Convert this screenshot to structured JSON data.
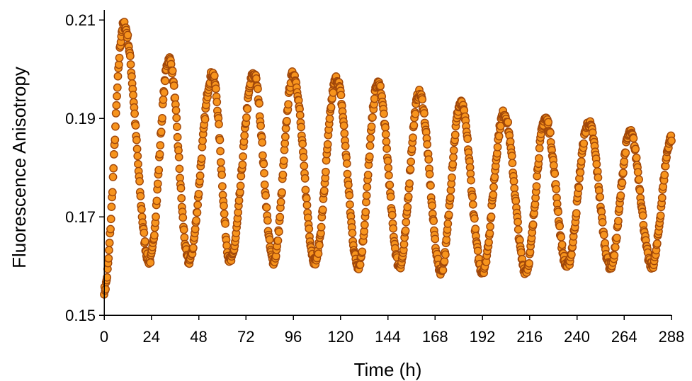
{
  "chart_data": {
    "type": "scatter",
    "title": "",
    "xlabel": "Time (h)",
    "ylabel": "Fluorescence Anisotropy",
    "xlim": [
      0,
      288
    ],
    "ylim": [
      0.15,
      0.21
    ],
    "xticks": [
      0,
      24,
      48,
      72,
      96,
      120,
      144,
      168,
      192,
      216,
      240,
      264,
      288
    ],
    "yticks": [
      0.15,
      0.17,
      0.19,
      0.21
    ],
    "ytick_labels": [
      "0.15",
      "0.17",
      "0.19",
      "0.21"
    ],
    "grid": false,
    "legend": "none",
    "marker_fill": "#f7941d",
    "marker_edge": "#a0470a",
    "period_hours": 21.4,
    "sampling_interval_hours": 0.25,
    "peaks": [
      {
        "x": 10,
        "y": 0.209
      },
      {
        "x": 33,
        "y": 0.202
      },
      {
        "x": 55,
        "y": 0.199
      },
      {
        "x": 76,
        "y": 0.199
      },
      {
        "x": 96,
        "y": 0.199
      },
      {
        "x": 118,
        "y": 0.198
      },
      {
        "x": 139,
        "y": 0.197
      },
      {
        "x": 160,
        "y": 0.195
      },
      {
        "x": 181,
        "y": 0.193
      },
      {
        "x": 203,
        "y": 0.191
      },
      {
        "x": 224,
        "y": 0.19
      },
      {
        "x": 246,
        "y": 0.189
      },
      {
        "x": 267,
        "y": 0.187
      }
    ],
    "troughs": [
      {
        "x": 0,
        "y": 0.155
      },
      {
        "x": 23,
        "y": 0.161
      },
      {
        "x": 43,
        "y": 0.161
      },
      {
        "x": 64,
        "y": 0.161
      },
      {
        "x": 86,
        "y": 0.161
      },
      {
        "x": 107,
        "y": 0.161
      },
      {
        "x": 129,
        "y": 0.16
      },
      {
        "x": 150,
        "y": 0.16
      },
      {
        "x": 171,
        "y": 0.159
      },
      {
        "x": 192,
        "y": 0.159
      },
      {
        "x": 214,
        "y": 0.159
      },
      {
        "x": 235,
        "y": 0.16
      },
      {
        "x": 257,
        "y": 0.16
      },
      {
        "x": 278,
        "y": 0.16
      }
    ],
    "end_point": {
      "x": 288,
      "y": 0.186
    }
  }
}
